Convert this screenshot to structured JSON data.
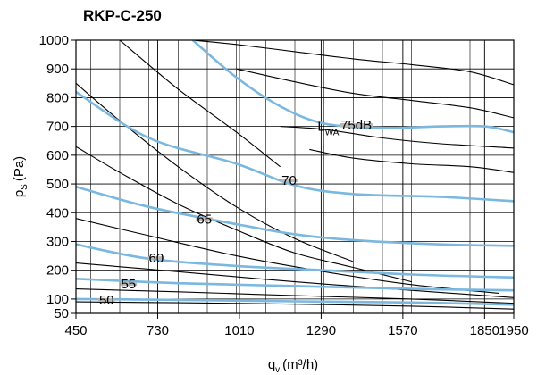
{
  "chart_data": {
    "type": "line",
    "title": "RKP-C-250",
    "xlabel": {
      "main": "q",
      "sub": "v",
      "unit": "(m³/h)"
    },
    "ylabel": {
      "main": "p",
      "sub": "S",
      "unit": "(Pa)"
    },
    "xlim": [
      450,
      1950
    ],
    "ylim": [
      50,
      1000
    ],
    "x_ticks": [
      450,
      730,
      1010,
      1290,
      1570,
      1850,
      1950
    ],
    "y_ticks": [
      50,
      100,
      200,
      300,
      400,
      500,
      600,
      700,
      800,
      900,
      1000
    ],
    "grid": true,
    "curve_color": "#000000",
    "sound_color": "#7ab8e0",
    "label_halo_color": "#b9b9b9",
    "fan_curves": [
      {
        "x": [
          600,
          800,
          1000,
          1150
        ],
        "y": [
          1000,
          830,
          680,
          560
        ]
      },
      {
        "x": [
          450,
          600,
          800,
          1000,
          1200,
          1400
        ],
        "y": [
          850,
          720,
          560,
          420,
          310,
          230
        ]
      },
      {
        "x": [
          450,
          600,
          800,
          1000,
          1200,
          1400,
          1600
        ],
        "y": [
          630,
          540,
          430,
          340,
          260,
          210,
          160
        ]
      },
      {
        "x": [
          450,
          700,
          1000,
          1300,
          1600,
          1900
        ],
        "y": [
          380,
          320,
          250,
          195,
          150,
          120
        ]
      },
      {
        "x": [
          450,
          800,
          1200,
          1600,
          1950
        ],
        "y": [
          225,
          195,
          160,
          130,
          105
        ]
      },
      {
        "x": [
          450,
          800,
          1200,
          1600,
          1950
        ],
        "y": [
          135,
          125,
          112,
          100,
          85
        ]
      },
      {
        "x": [
          450,
          800,
          1200,
          1600,
          1950
        ],
        "y": [
          90,
          87,
          82,
          75,
          65
        ]
      },
      {
        "x": [
          850,
          1000,
          1200,
          1400,
          1600,
          1800,
          1950
        ],
        "y": [
          1000,
          985,
          960,
          935,
          915,
          890,
          845
        ]
      },
      {
        "x": [
          1000,
          1200,
          1400,
          1600,
          1800,
          1950
        ],
        "y": [
          900,
          855,
          815,
          790,
          765,
          730
        ]
      },
      {
        "x": [
          1150,
          1300,
          1500,
          1700,
          1950
        ],
        "y": [
          700,
          690,
          660,
          640,
          625
        ]
      },
      {
        "x": [
          1250,
          1400,
          1600,
          1800,
          1950
        ],
        "y": [
          620,
          590,
          570,
          560,
          540
        ]
      }
    ],
    "sound_curves": [
      {
        "label": "50",
        "x": [
          450,
          800,
          1200,
          1600,
          1950
        ],
        "y": [
          100,
          97,
          92,
          88,
          80
        ]
      },
      {
        "label": "55",
        "x": [
          450,
          800,
          1200,
          1600,
          1950
        ],
        "y": [
          170,
          155,
          145,
          135,
          130
        ]
      },
      {
        "label": "60",
        "x": [
          450,
          700,
          1000,
          1300,
          1600,
          1950
        ],
        "y": [
          290,
          240,
          215,
          200,
          185,
          175
        ]
      },
      {
        "label": "65",
        "x": [
          450,
          700,
          1000,
          1200,
          1400,
          1700,
          1950
        ],
        "y": [
          490,
          420,
          360,
          325,
          305,
          290,
          285
        ]
      },
      {
        "label": "70",
        "x": [
          450,
          700,
          1000,
          1200,
          1400,
          1700,
          1950
        ],
        "y": [
          820,
          660,
          570,
          495,
          465,
          455,
          440
        ]
      },
      {
        "label": "75dB",
        "x": [
          850,
          1000,
          1150,
          1300,
          1500,
          1700,
          1850,
          1950
        ],
        "y": [
          1000,
          870,
          770,
          710,
          695,
          700,
          700,
          680
        ]
      }
    ],
    "curve_labels": [
      {
        "text": "50",
        "x": 555,
        "y": 97
      },
      {
        "text": "55",
        "x": 630,
        "y": 152
      },
      {
        "text": "60",
        "x": 725,
        "y": 242
      },
      {
        "text": "65",
        "x": 890,
        "y": 378
      },
      {
        "text": "70",
        "x": 1180,
        "y": 512
      },
      {
        "text": "75dB",
        "x": 1410,
        "y": 705
      }
    ],
    "annotation": {
      "main": "L",
      "sub": "WA",
      "x": 1290,
      "y": 700
    }
  }
}
